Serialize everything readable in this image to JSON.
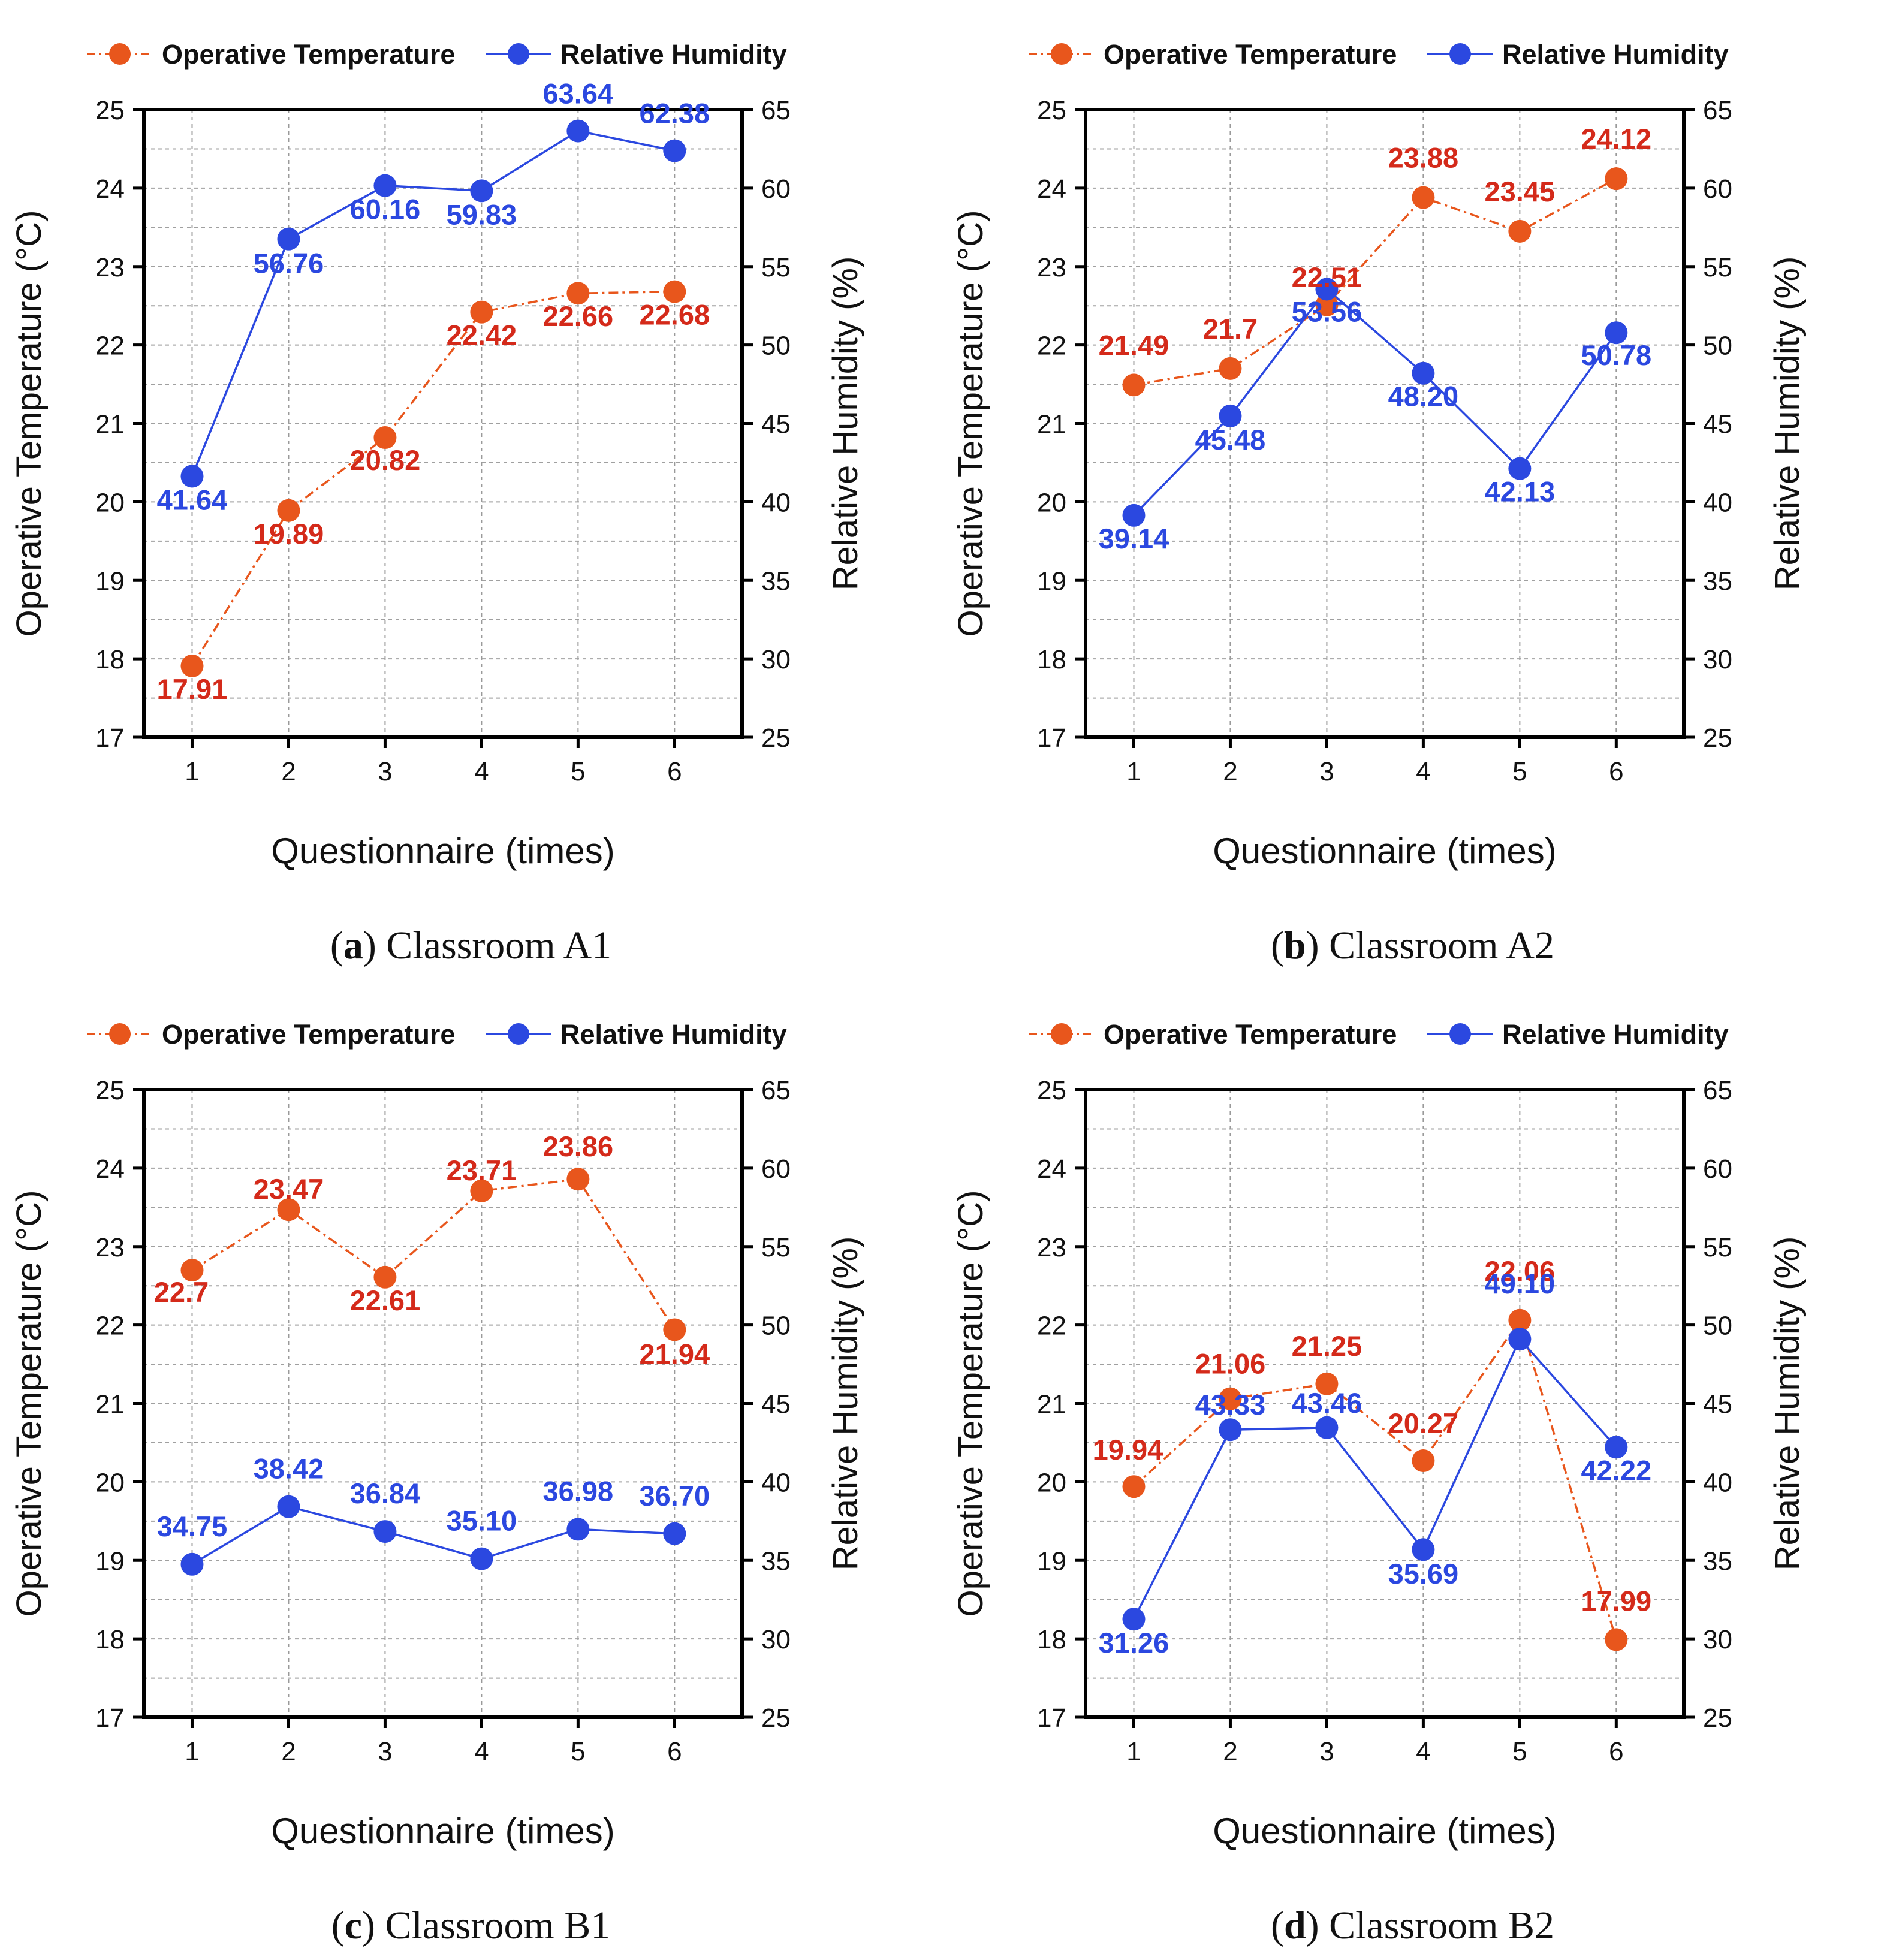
{
  "colors": {
    "temperature": "#e8561c",
    "temperature_label": "#d42a1a",
    "humidity": "#2b48e0",
    "humidity_label": "#2b48e0"
  },
  "chart_data": [
    {
      "type": "line",
      "panel_letter": "a",
      "caption": "Classroom A1",
      "xlabel": "Questionnaire (times)",
      "ylabel_left": "Operative Temperature (°C)",
      "ylabel_right": "Relative Humidity (%)",
      "legend": [
        "Operative Temperature",
        "Relative Humidity"
      ],
      "x": [
        1,
        2,
        3,
        4,
        5,
        6
      ],
      "ylim_left": [
        17,
        25
      ],
      "yticks_left": [
        17,
        18,
        19,
        20,
        21,
        22,
        23,
        24,
        25
      ],
      "ylim_right": [
        25,
        65
      ],
      "yticks_right": [
        25,
        30,
        35,
        40,
        45,
        50,
        55,
        60,
        65
      ],
      "grid": true,
      "series": [
        {
          "name": "Operative Temperature",
          "axis": "left",
          "values": [
            17.91,
            19.89,
            20.82,
            22.42,
            22.66,
            22.68
          ],
          "labels": [
            "17.91",
            "19.89",
            "20.82",
            "22.42",
            "22.66",
            "22.68"
          ]
        },
        {
          "name": "Relative Humidity",
          "axis": "right",
          "values": [
            41.64,
            56.76,
            60.16,
            59.83,
            63.64,
            62.38
          ],
          "labels": [
            "41.64",
            "56.76",
            "60.16",
            "59.83",
            "63.64",
            "62.38"
          ]
        }
      ]
    },
    {
      "type": "line",
      "panel_letter": "b",
      "caption": "Classroom A2",
      "xlabel": "Questionnaire (times)",
      "ylabel_left": "Operative Temperature (°C)",
      "ylabel_right": "Relative Humidity (%)",
      "legend": [
        "Operative Temperature",
        "Relative Humidity"
      ],
      "x": [
        1,
        2,
        3,
        4,
        5,
        6
      ],
      "ylim_left": [
        17,
        25
      ],
      "yticks_left": [
        17,
        18,
        19,
        20,
        21,
        22,
        23,
        24,
        25
      ],
      "ylim_right": [
        25,
        65
      ],
      "yticks_right": [
        25,
        30,
        35,
        40,
        45,
        50,
        55,
        60,
        65
      ],
      "grid": true,
      "series": [
        {
          "name": "Operative Temperature",
          "axis": "left",
          "values": [
            21.49,
            21.7,
            22.51,
            23.88,
            23.45,
            24.12
          ],
          "labels": [
            "21.49",
            "21.7",
            "22.51",
            "23.88",
            "23.45",
            "24.12"
          ]
        },
        {
          "name": "Relative Humidity",
          "axis": "right",
          "values": [
            39.14,
            45.48,
            53.56,
            48.2,
            42.13,
            50.78
          ],
          "labels": [
            "39.14",
            "45.48",
            "53.56",
            "48.20",
            "42.13",
            "50.78"
          ]
        }
      ]
    },
    {
      "type": "line",
      "panel_letter": "c",
      "caption": "Classroom B1",
      "xlabel": "Questionnaire (times)",
      "ylabel_left": "Operative Temperature (°C)",
      "ylabel_right": "Relative Humidity (%)",
      "legend": [
        "Operative Temperature",
        "Relative Humidity"
      ],
      "x": [
        1,
        2,
        3,
        4,
        5,
        6
      ],
      "ylim_left": [
        17,
        25
      ],
      "yticks_left": [
        17,
        18,
        19,
        20,
        21,
        22,
        23,
        24,
        25
      ],
      "ylim_right": [
        25,
        65
      ],
      "yticks_right": [
        25,
        30,
        35,
        40,
        45,
        50,
        55,
        60,
        65
      ],
      "grid": true,
      "series": [
        {
          "name": "Operative Temperature",
          "axis": "left",
          "values": [
            22.7,
            23.47,
            22.61,
            23.71,
            23.86,
            21.94
          ],
          "labels": [
            "22.7",
            "23.47",
            "22.61",
            "23.71",
            "23.86",
            "21.94"
          ]
        },
        {
          "name": "Relative Humidity",
          "axis": "right",
          "values": [
            34.75,
            38.42,
            36.84,
            35.1,
            36.98,
            36.7
          ],
          "labels": [
            "34.75",
            "38.42",
            "36.84",
            "35.10",
            "36.98",
            "36.70"
          ]
        }
      ]
    },
    {
      "type": "line",
      "panel_letter": "d",
      "caption": "Classroom B2",
      "xlabel": "Questionnaire (times)",
      "ylabel_left": "Operative Temperature (°C)",
      "ylabel_right": "Relative Humidity (%)",
      "legend": [
        "Operative Temperature",
        "Relative Humidity"
      ],
      "x": [
        1,
        2,
        3,
        4,
        5,
        6
      ],
      "ylim_left": [
        17,
        25
      ],
      "yticks_left": [
        17,
        18,
        19,
        20,
        21,
        22,
        23,
        24,
        25
      ],
      "ylim_right": [
        25,
        65
      ],
      "yticks_right": [
        25,
        30,
        35,
        40,
        45,
        50,
        55,
        60,
        65
      ],
      "grid": true,
      "series": [
        {
          "name": "Operative Temperature",
          "axis": "left",
          "values": [
            19.94,
            21.06,
            21.25,
            20.27,
            22.06,
            17.99
          ],
          "labels": [
            "19.94",
            "21.06",
            "21.25",
            "20.27",
            "22.06",
            "17.99"
          ]
        },
        {
          "name": "Relative Humidity",
          "axis": "right",
          "values": [
            31.26,
            43.33,
            43.46,
            35.69,
            49.1,
            42.22
          ],
          "labels": [
            "31.26",
            "43.33",
            "43.46",
            "35.69",
            "49.10",
            "42.22"
          ]
        }
      ]
    }
  ]
}
